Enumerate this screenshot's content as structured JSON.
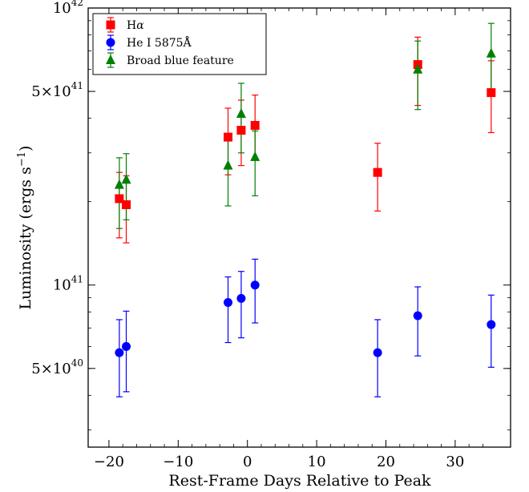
{
  "chart_data": {
    "type": "scatter",
    "xlabel": "Rest-Frame Days Relative to Peak",
    "ylabel": "Luminosity (ergs s",
    "ylabel_sup": "−1",
    "ylabel_end": ")",
    "xlim": [
      -23,
      38
    ],
    "ylim": [
      2.6e+40,
      1e+42
    ],
    "yscale": "log",
    "grid": false,
    "legend_position": "top-left",
    "x_ticks": [
      {
        "value": -20,
        "label": "−20"
      },
      {
        "value": -10,
        "label": "−10"
      },
      {
        "value": 0,
        "label": "0"
      },
      {
        "value": 10,
        "label": "10"
      },
      {
        "value": 20,
        "label": "20"
      },
      {
        "value": 30,
        "label": "30"
      }
    ],
    "y_ticks": [
      {
        "value": 5e+40,
        "mant": "5×10",
        "exp": "40"
      },
      {
        "value": 1e+41,
        "mant": "10",
        "exp": "41"
      },
      {
        "value": 5e+41,
        "mant": "5×10",
        "exp": "41"
      },
      {
        "value": 1e+42,
        "mant": "10",
        "exp": "42"
      }
    ],
    "series": [
      {
        "name": "H",
        "name_greek": "α",
        "marker": "square",
        "color": "#ff0000",
        "points": [
          {
            "x": -18.5,
            "y": 2.05e+41,
            "lo": 1.48e+41,
            "hi": 2.55e+41
          },
          {
            "x": -17.5,
            "y": 1.95e+41,
            "lo": 1.42e+41,
            "hi": 2.48e+41
          },
          {
            "x": -2.8,
            "y": 3.42e+41,
            "lo": 2.5e+41,
            "hi": 4.35e+41
          },
          {
            "x": -0.9,
            "y": 3.62e+41,
            "lo": 2.7e+41,
            "hi": 4.65e+41
          },
          {
            "x": 1.1,
            "y": 3.77e+41,
            "lo": 2.82e+41,
            "hi": 4.85e+41
          },
          {
            "x": 18.8,
            "y": 2.55e+41,
            "lo": 1.85e+41,
            "hi": 3.25e+41
          },
          {
            "x": 24.6,
            "y": 6.25e+41,
            "lo": 4.45e+41,
            "hi": 7.85e+41
          },
          {
            "x": 35.2,
            "y": 4.95e+41,
            "lo": 3.55e+41,
            "hi": 6.45e+41
          }
        ]
      },
      {
        "name": "He I 5875Å",
        "marker": "circle",
        "color": "#0000ff",
        "points": [
          {
            "x": -18.5,
            "y": 5.7e+40,
            "lo": 3.95e+40,
            "hi": 7.5e+40
          },
          {
            "x": -17.5,
            "y": 6e+40,
            "lo": 4.12e+40,
            "hi": 8.05e+40
          },
          {
            "x": -2.8,
            "y": 8.65e+40,
            "lo": 6.2e+40,
            "hi": 1.07e+41
          },
          {
            "x": -0.9,
            "y": 8.95e+40,
            "lo": 6.45e+40,
            "hi": 1.12e+41
          },
          {
            "x": 1.1,
            "y": 1e+41,
            "lo": 7.3e+40,
            "hi": 1.24e+41
          },
          {
            "x": 18.8,
            "y": 5.7e+40,
            "lo": 3.95e+40,
            "hi": 7.5e+40
          },
          {
            "x": 24.6,
            "y": 7.75e+40,
            "lo": 5.55e+40,
            "hi": 9.85e+40
          },
          {
            "x": 35.2,
            "y": 7.2e+40,
            "lo": 5.05e+40,
            "hi": 9.2e+40
          }
        ]
      },
      {
        "name": "Broad blue feature",
        "marker": "triangle",
        "color": "#008000",
        "points": [
          {
            "x": -18.5,
            "y": 2.3e+41,
            "lo": 1.6e+41,
            "hi": 2.88e+41
          },
          {
            "x": -17.5,
            "y": 2.4e+41,
            "lo": 1.72e+41,
            "hi": 2.98e+41
          },
          {
            "x": -2.8,
            "y": 2.7e+41,
            "lo": 1.93e+41,
            "hi": 3.38e+41
          },
          {
            "x": -0.9,
            "y": 4.15e+41,
            "lo": 3e+41,
            "hi": 5.35e+41
          },
          {
            "x": 1.1,
            "y": 2.9e+41,
            "lo": 2.1e+41,
            "hi": 3.6e+41
          },
          {
            "x": 24.6,
            "y": 6e+41,
            "lo": 4.3e+41,
            "hi": 7.6e+41
          },
          {
            "x": 35.2,
            "y": 6.85e+41,
            "lo": 4.95e+41,
            "hi": 8.8e+41
          }
        ]
      }
    ]
  }
}
